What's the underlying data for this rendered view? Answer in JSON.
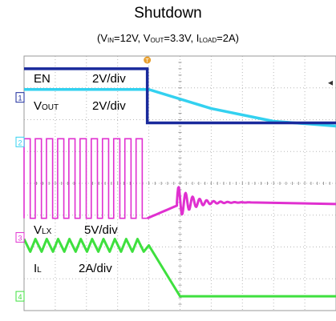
{
  "title": "Shutdown",
  "subtitle": {
    "parts": [
      {
        "t": "(V"
      },
      {
        "sub": "IN"
      },
      {
        "t": "=12V, V"
      },
      {
        "sub": "OUT"
      },
      {
        "t": "=3.3V, I"
      },
      {
        "sub": "LOAD"
      },
      {
        "t": "=2A)"
      }
    ]
  },
  "chart_data": {
    "type": "line",
    "title": "Shutdown",
    "subtitle": "(VIN=12V, VOUT=3.3V, ILOAD=2A)",
    "x_divisions": 10,
    "y_divisions": 8,
    "trigger_marker": "T",
    "colors": {
      "EN": "#1a2a9c",
      "VOUT": "#33d1f0",
      "VLX": "#e030d0",
      "IL": "#3ee03e"
    },
    "series": [
      {
        "name": "EN",
        "label": "EN",
        "scale": "2V/div",
        "channel_marker": "1",
        "x": [
          0,
          3.95,
          3.95,
          10
        ],
        "y": [
          7.6,
          7.6,
          5.9,
          5.9
        ]
      },
      {
        "name": "VOUT",
        "label": "VOUT",
        "scale": "2V/div",
        "channel_marker": "2",
        "x": [
          0,
          4.0,
          6.0,
          8.0,
          10
        ],
        "y": [
          6.95,
          6.95,
          6.35,
          5.95,
          5.8
        ]
      },
      {
        "name": "VLX",
        "label": "VLX",
        "scale": "5V/div",
        "channel_marker": "3",
        "pulse_count": 11,
        "switching_end_div": 3.95,
        "high_level_div": 5.4,
        "low_level_div": 2.9,
        "ringing_start_div": 4.9,
        "settled_level_div": 3.4
      },
      {
        "name": "IL",
        "label": "IL",
        "scale": "2A/div",
        "channel_marker": "4",
        "ripple_count": 11,
        "ripple_amplitude_div": 0.2,
        "x": [
          0,
          4.0,
          5.0,
          10
        ],
        "y": [
          2.05,
          2.05,
          0.45,
          0.45
        ]
      }
    ]
  }
}
